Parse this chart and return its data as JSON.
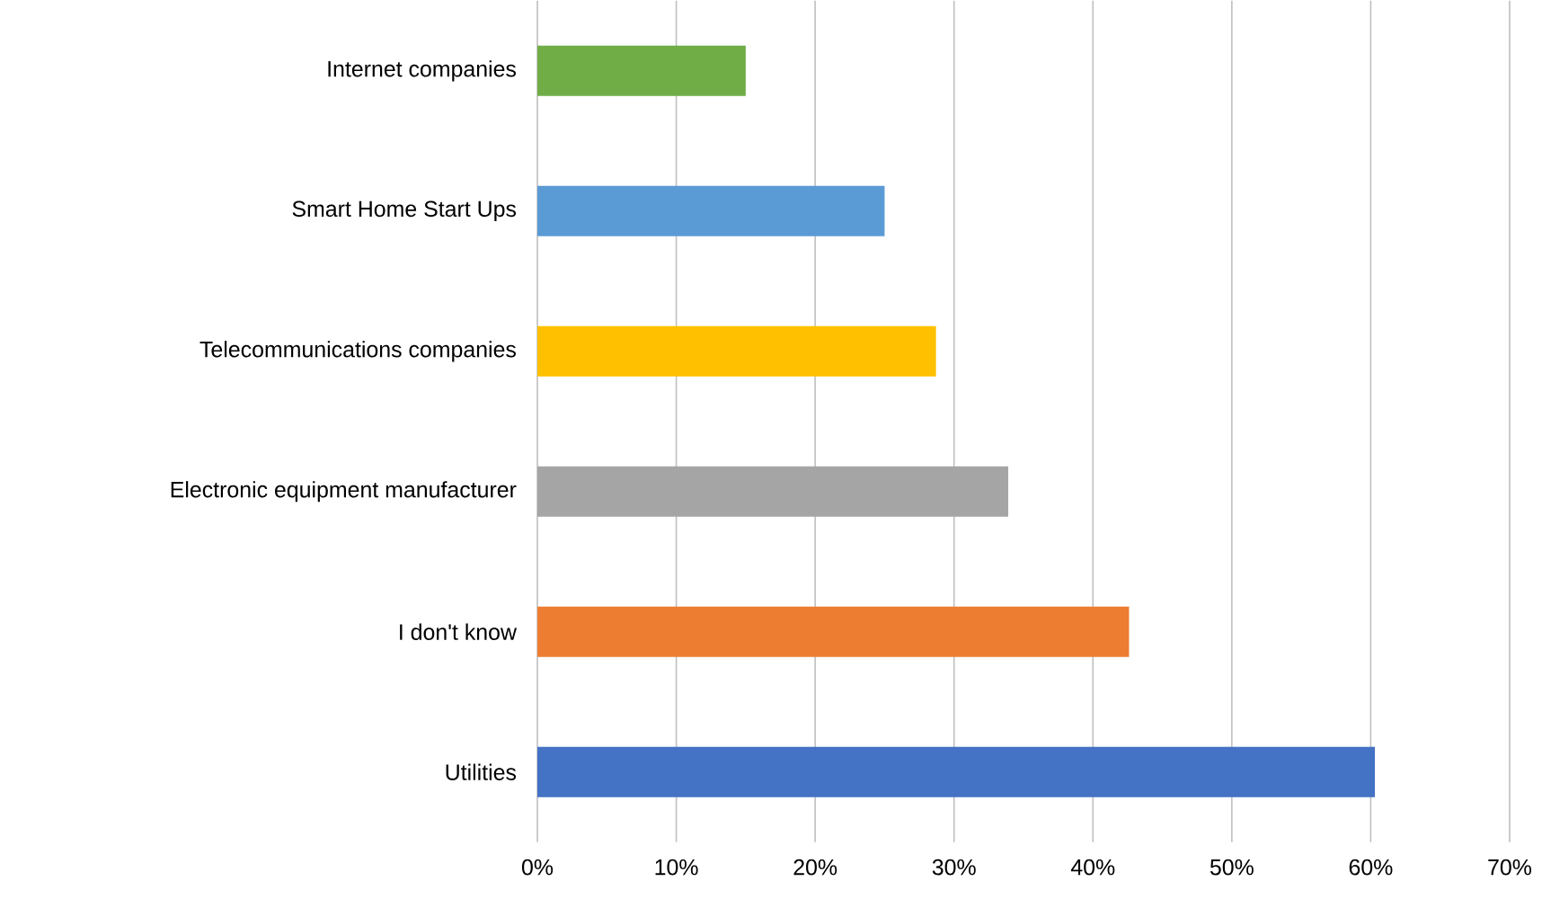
{
  "chart_data": {
    "type": "bar",
    "orientation": "horizontal",
    "categories": [
      "Internet companies",
      "Smart Home Start Ups",
      "Telecommunications companies",
      "Electronic equipment manufacturer",
      "I don't know",
      "Utilities"
    ],
    "values": [
      15,
      25,
      28.7,
      33.9,
      42.6,
      60.3
    ],
    "colors": [
      "#70ad47",
      "#5b9bd5",
      "#ffc000",
      "#a5a5a5",
      "#ed7d31",
      "#4472c4"
    ],
    "xlim": [
      0,
      70
    ],
    "xticks": [
      {
        "value": 0,
        "label": "0%"
      },
      {
        "value": 10,
        "label": "10%"
      },
      {
        "value": 20,
        "label": "20%"
      },
      {
        "value": 30,
        "label": "30%"
      },
      {
        "value": 40,
        "label": "40%"
      },
      {
        "value": 50,
        "label": "50%"
      },
      {
        "value": 60,
        "label": "60%"
      },
      {
        "value": 70,
        "label": "70%"
      }
    ],
    "grid": "x"
  }
}
